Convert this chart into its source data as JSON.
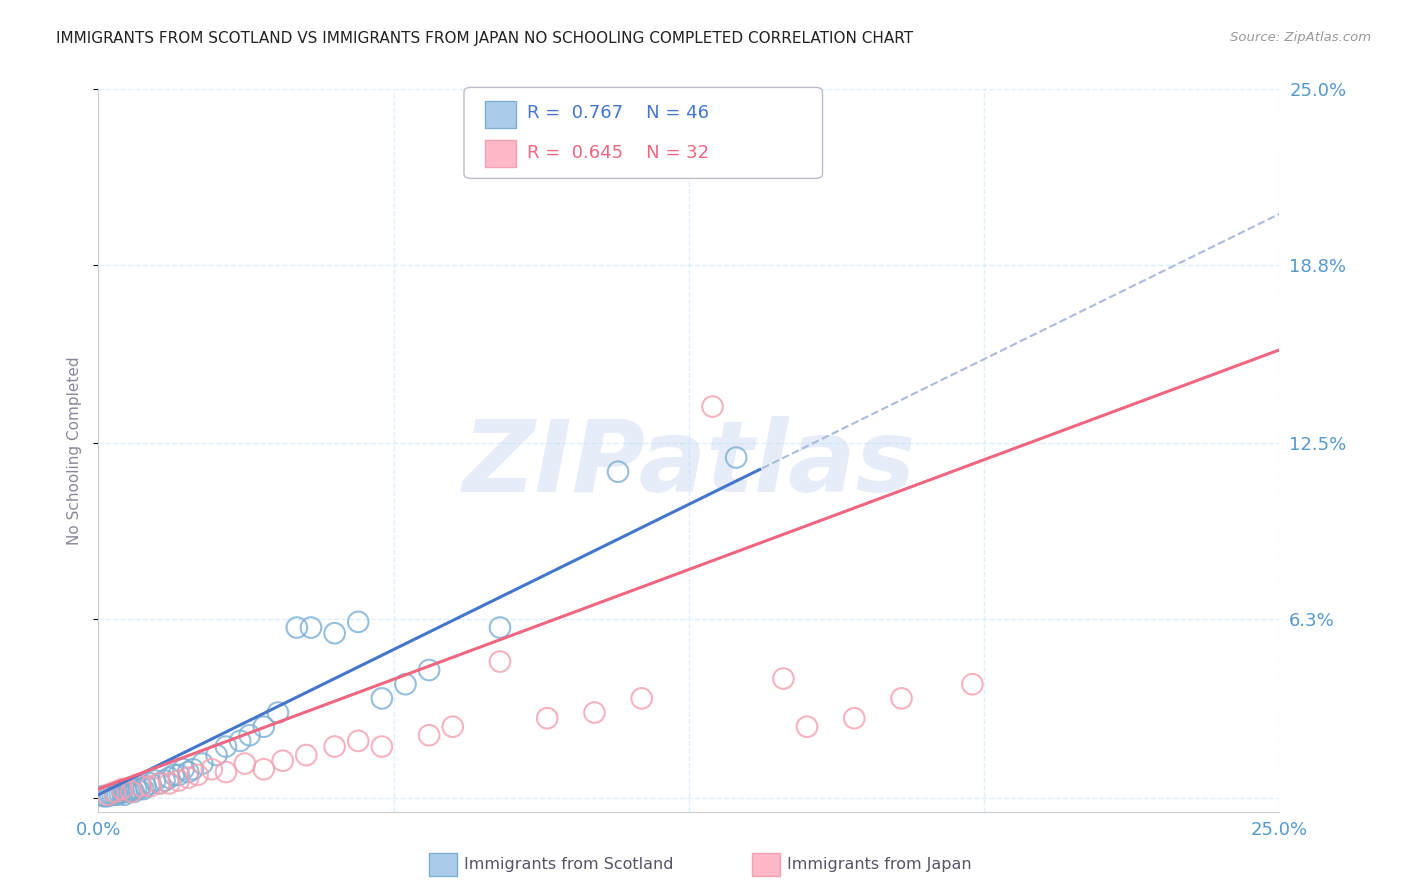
{
  "title": "IMMIGRANTS FROM SCOTLAND VS IMMIGRANTS FROM JAPAN NO SCHOOLING COMPLETED CORRELATION CHART",
  "source": "Source: ZipAtlas.com",
  "ylabel": "No Schooling Completed",
  "ytick_values": [
    0.0,
    6.3,
    12.5,
    18.8,
    25.0
  ],
  "ytick_labels": [
    "",
    "6.3%",
    "12.5%",
    "18.8%",
    "25.0%"
  ],
  "xtick_values": [
    0.0,
    6.25,
    12.5,
    18.75,
    25.0
  ],
  "xtick_labels": [
    "0.0%",
    "",
    "",
    "",
    "25.0%"
  ],
  "xlim": [
    0.0,
    25.0
  ],
  "ylim": [
    -0.5,
    25.0
  ],
  "scotland_R": 0.767,
  "scotland_N": 46,
  "japan_R": 0.645,
  "japan_N": 32,
  "scotland_color": "#7BAFD4",
  "japan_color": "#F4A0B0",
  "trendline_scotland_solid_color": "#4477CC",
  "trendline_scotland_dash_color": "#AABBDD",
  "trendline_japan_color": "#EE6680",
  "background_color": "#FFFFFF",
  "grid_color": "#DDEEFF",
  "title_color": "#222222",
  "axis_label_color": "#5599CC",
  "watermark_text": "ZIPatlas",
  "scotland_x": [
    0.1,
    0.15,
    0.2,
    0.25,
    0.3,
    0.35,
    0.4,
    0.45,
    0.5,
    0.55,
    0.6,
    0.65,
    0.7,
    0.75,
    0.8,
    0.85,
    0.9,
    0.95,
    1.0,
    1.1,
    1.2,
    1.3,
    1.4,
    1.5,
    1.6,
    1.7,
    1.8,
    1.9,
    2.0,
    2.2,
    2.5,
    2.7,
    3.0,
    3.2,
    3.5,
    3.8,
    4.2,
    4.5,
    5.0,
    5.5,
    6.0,
    6.5,
    7.0,
    8.5,
    11.0,
    13.5
  ],
  "scotland_y": [
    0.05,
    0.05,
    0.05,
    0.1,
    0.1,
    0.1,
    0.1,
    0.15,
    0.2,
    0.1,
    0.2,
    0.2,
    0.3,
    0.2,
    0.3,
    0.3,
    0.4,
    0.3,
    0.4,
    0.5,
    0.6,
    0.5,
    0.6,
    0.7,
    0.8,
    0.8,
    1.0,
    0.9,
    1.0,
    1.2,
    1.5,
    1.8,
    2.0,
    2.2,
    2.5,
    3.0,
    6.0,
    6.0,
    5.8,
    6.2,
    3.5,
    4.0,
    4.5,
    6.0,
    11.5,
    12.0
  ],
  "japan_x": [
    0.2,
    0.35,
    0.5,
    0.7,
    0.9,
    1.1,
    1.3,
    1.5,
    1.7,
    1.9,
    2.1,
    2.4,
    2.7,
    3.1,
    3.5,
    3.9,
    4.4,
    5.0,
    5.5,
    6.0,
    7.0,
    7.5,
    8.5,
    9.5,
    10.5,
    11.5,
    13.0,
    14.5,
    15.0,
    16.0,
    17.0,
    18.5
  ],
  "japan_y": [
    0.1,
    0.2,
    0.3,
    0.2,
    0.4,
    0.4,
    0.5,
    0.5,
    0.6,
    0.7,
    0.8,
    1.0,
    0.9,
    1.2,
    1.0,
    1.3,
    1.5,
    1.8,
    2.0,
    1.8,
    2.2,
    2.5,
    4.8,
    2.8,
    3.0,
    3.5,
    13.8,
    4.2,
    2.5,
    2.8,
    3.5,
    4.0
  ],
  "scotland_trend_x0": 0.0,
  "scotland_trend_x_solid_end": 14.0,
  "scotland_trend_x_dash_end": 25.0,
  "japan_trend_x0": 0.0,
  "japan_trend_x_end": 25.0,
  "scotland_slope": 0.82,
  "scotland_intercept": 0.1,
  "japan_slope": 0.62,
  "japan_intercept": 0.3
}
